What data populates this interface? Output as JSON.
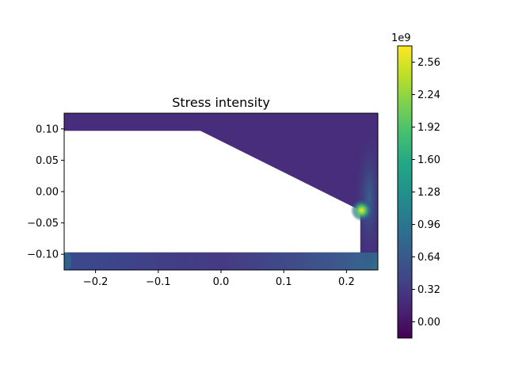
{
  "chart_data": {
    "type": "heatmap",
    "title": "Stress intensity",
    "xlabel": "",
    "ylabel": "",
    "xlim": [
      -0.25,
      0.25
    ],
    "ylim": [
      -0.125,
      0.125
    ],
    "x_ticks": [
      -0.2,
      -0.1,
      0.0,
      0.1,
      0.2
    ],
    "x_tick_labels": [
      "−0.2",
      "−0.1",
      "0.0",
      "0.1",
      "0.2"
    ],
    "y_ticks": [
      0.1,
      0.05,
      0.0,
      -0.05,
      -0.1
    ],
    "y_tick_labels": [
      "0.10",
      "0.05",
      "0.00",
      "−0.05",
      "−0.10"
    ],
    "colorbar": {
      "colormap": "viridis",
      "range": [
        -160000000.0,
        2720000000.0
      ],
      "multiplier_label": "1e9",
      "ticks": [
        0.0,
        0.32,
        0.64,
        0.96,
        1.28,
        1.6,
        1.92,
        2.24,
        2.56
      ],
      "tick_labels": [
        "0.00",
        "0.32",
        "0.64",
        "0.96",
        "1.28",
        "1.60",
        "1.92",
        "2.24",
        "2.56"
      ]
    },
    "geometry": {
      "white_region_outline_data": [
        [
          -0.25,
          0.097
        ],
        [
          -0.033,
          0.097
        ],
        [
          0.222,
          -0.03
        ],
        [
          0.222,
          -0.097
        ],
        [
          -0.25,
          -0.097
        ]
      ],
      "hotspot_data": [
        0.224,
        -0.03
      ]
    },
    "colors": {
      "low": "#44015a",
      "background_field": "#472d7b",
      "mid": "#31688e",
      "high": "#35b779",
      "peak": "#fde725"
    },
    "grid": false
  }
}
